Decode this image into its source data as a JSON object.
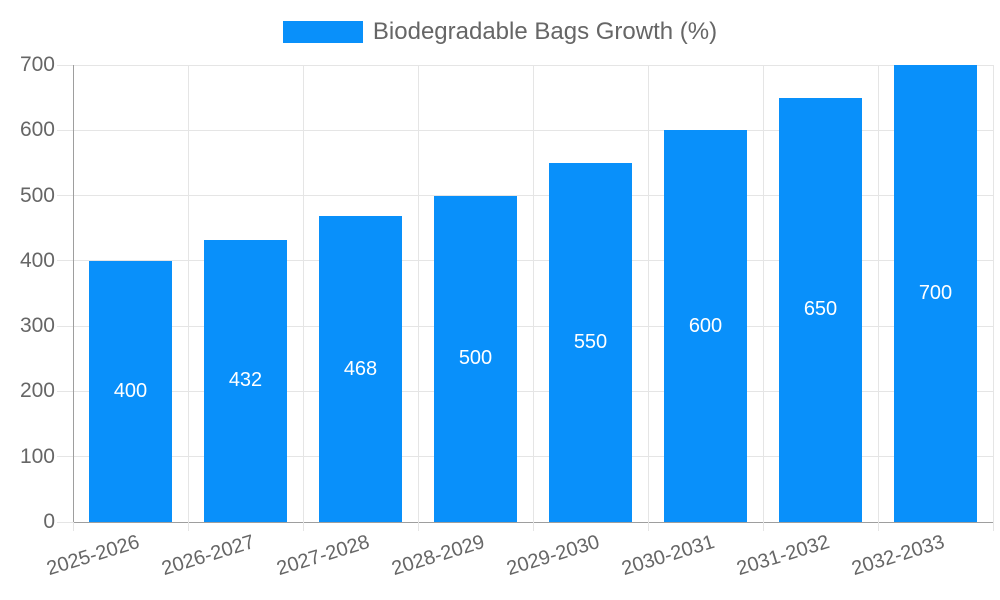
{
  "chart_data": {
    "type": "bar",
    "legend_label": "Biodegradable Bags Growth (%)",
    "categories": [
      "2025-2026",
      "2026-2027",
      "2027-2028",
      "2028-2029",
      "2029-2030",
      "2030-2031",
      "2031-2032",
      "2032-2033"
    ],
    "values": [
      400,
      432,
      468,
      500,
      550,
      600,
      650,
      700
    ],
    "bar_value_labels": [
      "400",
      "432",
      "468",
      "500",
      "550",
      "600",
      "650",
      "700"
    ],
    "y_tick_labels": [
      "0",
      "100",
      "200",
      "300",
      "400",
      "500",
      "600",
      "700"
    ],
    "ylim": [
      0,
      700
    ],
    "ytick_step": 100,
    "xlabel": "",
    "ylabel": "",
    "grid": true,
    "legend_position": "top",
    "colors": {
      "bar": "#0990fa",
      "grid": "#e5e5e5",
      "axis": "#9e9e9e",
      "tick_text": "#666666",
      "bar_label": "#ffffff",
      "legend_text": "#666666",
      "background": "#ffffff"
    }
  }
}
